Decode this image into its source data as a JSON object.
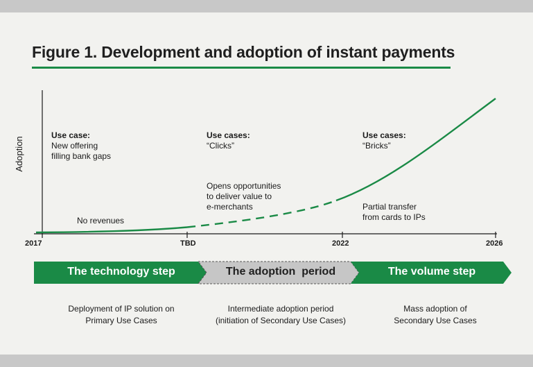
{
  "title": "Figure 1. Development and adoption of instant payments",
  "colors": {
    "accent": "#1a8a46",
    "adoption_arrow": "#c6c6c6",
    "axis": "#1a1a1a"
  },
  "chart_data": {
    "type": "line",
    "title": "Figure 1. Development and adoption of instant payments",
    "ylabel": "Adoption",
    "xlabel": "",
    "x_ticks": [
      "2017",
      "TBD",
      "2022",
      "2026"
    ],
    "series_style": "solid (2017–TBD), dashed (TBD–2022), solid (2022–2026)",
    "grid": false,
    "legend": "none"
  },
  "annotations": {
    "a1": {
      "head": "Use case:",
      "lines": [
        "New offering",
        "filling bank gaps"
      ]
    },
    "a2": {
      "head": "Use cases:",
      "lines": [
        "“Clicks”"
      ]
    },
    "a3": {
      "head": "Use cases:",
      "lines": [
        "“Bricks”"
      ]
    },
    "no_revenues": "No revenues",
    "opens": [
      "Opens opportunities",
      "to deliver value to",
      "e-merchants"
    ],
    "partial": [
      "Partial transfer",
      "from cards to IPs"
    ]
  },
  "phases": [
    {
      "label": "The technology step",
      "desc": [
        "Deployment of IP solution on",
        "Primary Use Cases"
      ]
    },
    {
      "label": "The adoption  period",
      "desc": [
        "Intermediate adoption period",
        "(initiation of Secondary Use Cases)"
      ]
    },
    {
      "label": "The volume step",
      "desc": [
        "Mass adoption of",
        "Secondary Use Cases"
      ]
    }
  ]
}
